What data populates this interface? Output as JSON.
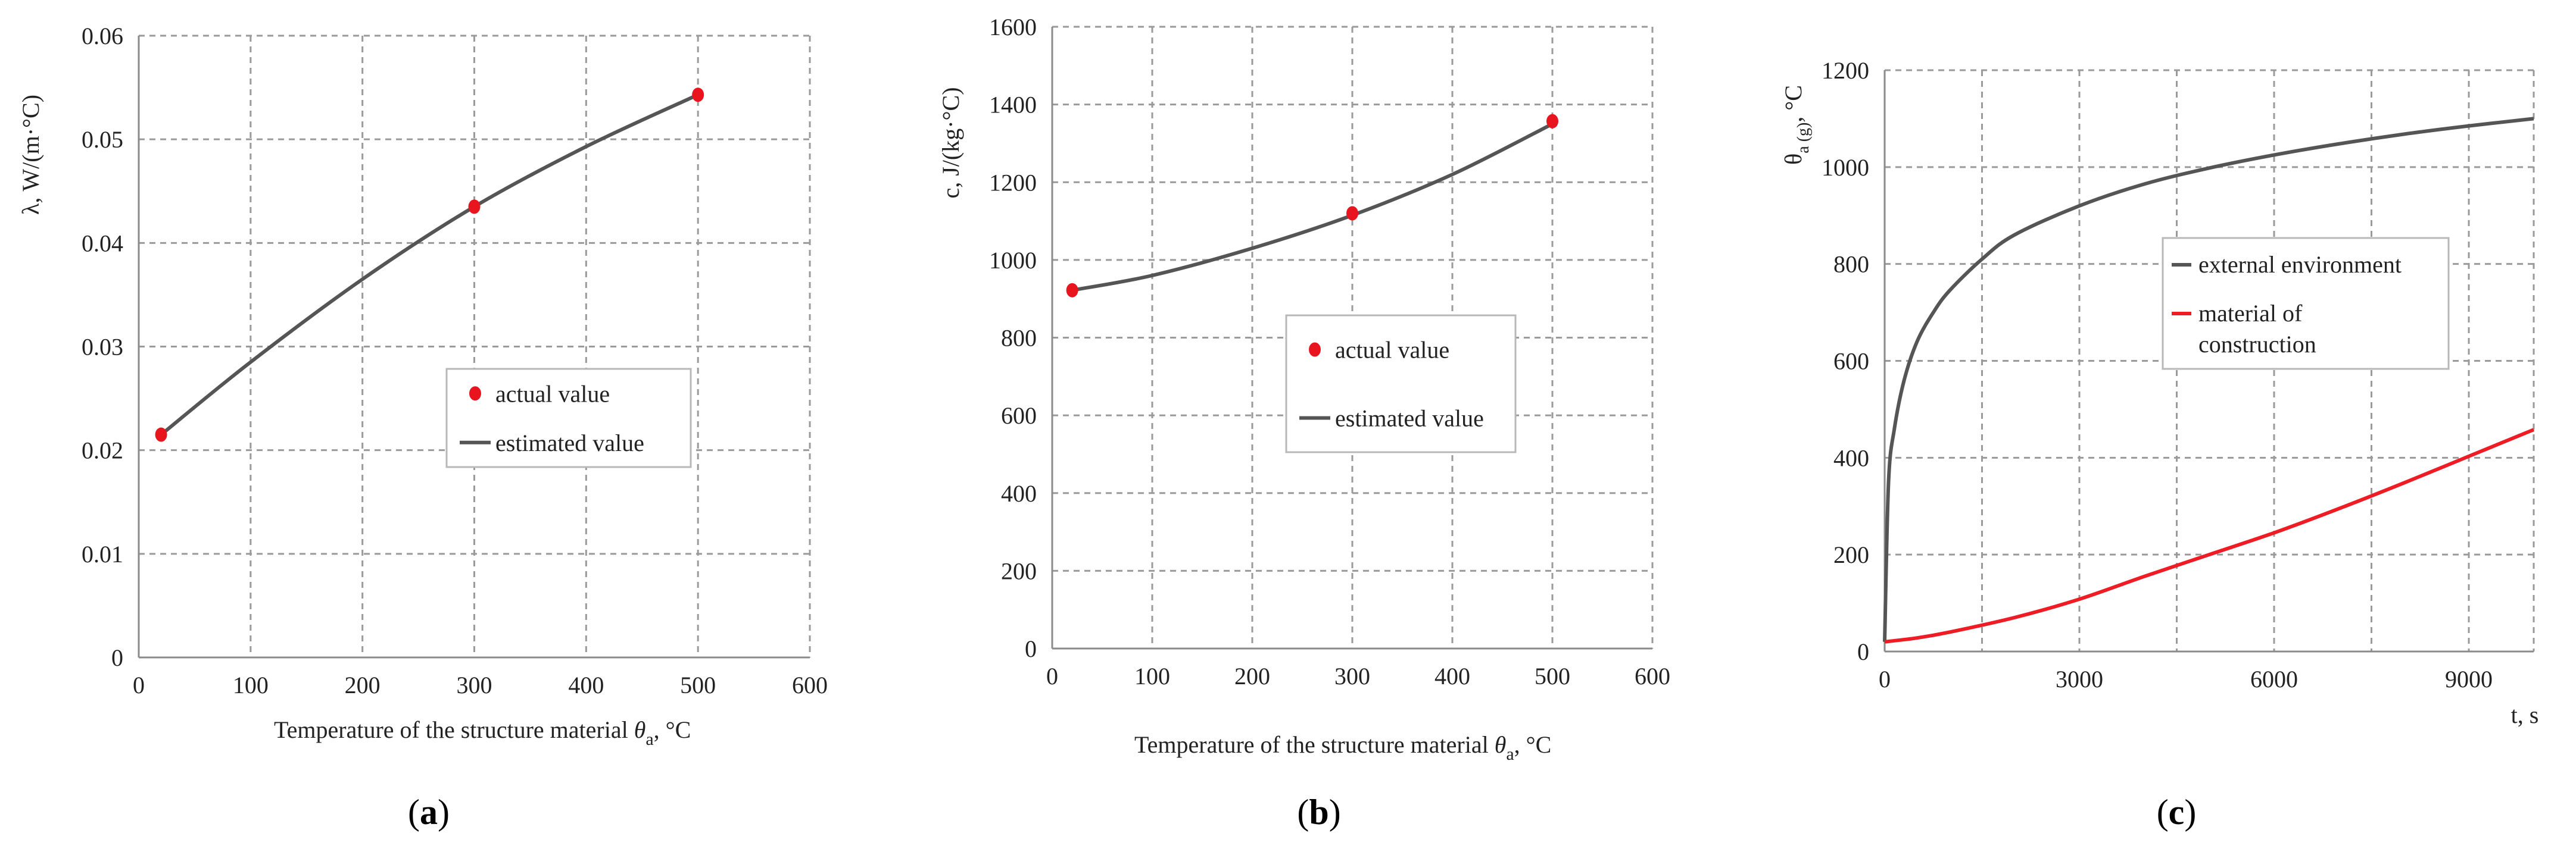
{
  "chart_data": [
    {
      "id": "a",
      "type": "line",
      "caption_letter": "a",
      "xlabel": "Temperature of the structure material",
      "xlabel_symbol": "θ",
      "xlabel_sub": "a",
      "xlabel_unit": ", °C",
      "ylabel": "λ, W/(m·°C)",
      "xlim": [
        0,
        600
      ],
      "ylim": [
        0,
        0.06
      ],
      "x_ticks": [
        0,
        100,
        200,
        300,
        400,
        500,
        600
      ],
      "y_ticks": [
        0,
        0.01,
        0.02,
        0.03,
        0.04,
        0.05,
        0.06
      ],
      "y_tick_labels": [
        "0",
        "0.01",
        "0.02",
        "0.03",
        "0.04",
        "0.05",
        "0.06"
      ],
      "series": [
        {
          "name": "actual value",
          "kind": "points",
          "color": "#e8141e",
          "x": [
            20,
            300,
            500
          ],
          "y": [
            0.0215,
            0.0435,
            0.0543
          ]
        },
        {
          "name": "estimated value",
          "kind": "line",
          "color": "#555555",
          "x": [
            20,
            100,
            200,
            300,
            400,
            500
          ],
          "y": [
            0.0215,
            0.0285,
            0.0365,
            0.0435,
            0.0493,
            0.0543
          ]
        }
      ],
      "legend": [
        {
          "label": "actual value",
          "kind": "points"
        },
        {
          "label": "estimated value",
          "kind": "line"
        }
      ]
    },
    {
      "id": "b",
      "type": "line",
      "caption_letter": "b",
      "xlabel": "Temperature of the structure material",
      "xlabel_symbol": "θ",
      "xlabel_sub": "a",
      "xlabel_unit": ", °C",
      "ylabel": "c, J/(kg·°C)",
      "xlim": [
        0,
        600
      ],
      "ylim": [
        0,
        1600
      ],
      "x_ticks": [
        0,
        100,
        200,
        300,
        400,
        500,
        600
      ],
      "y_ticks": [
        0,
        200,
        400,
        600,
        800,
        1000,
        1200,
        1400,
        1600
      ],
      "y_tick_labels": [
        "0",
        "200",
        "400",
        "600",
        "800",
        "1000",
        "1200",
        "1400",
        "1600"
      ],
      "series": [
        {
          "name": "actual value",
          "kind": "points",
          "color": "#e8141e",
          "x": [
            20,
            300,
            500
          ],
          "y": [
            922,
            1120,
            1357
          ]
        },
        {
          "name": "estimated value",
          "kind": "line",
          "color": "#555555",
          "x": [
            20,
            100,
            200,
            300,
            400,
            500
          ],
          "y": [
            922,
            960,
            1030,
            1115,
            1220,
            1350
          ]
        }
      ],
      "legend": [
        {
          "label": "actual value",
          "kind": "points"
        },
        {
          "label": "estimated value",
          "kind": "line"
        }
      ]
    },
    {
      "id": "c",
      "type": "line",
      "caption_letter": "c",
      "xlabel": "t, s",
      "ylabel_symbol": "θ",
      "ylabel_sub": "a (g)",
      "ylabel_unit": ",  °C",
      "xlim": [
        0,
        10000
      ],
      "ylim": [
        0,
        1200
      ],
      "x_ticks": [
        0,
        3000,
        6000,
        9000
      ],
      "x_grid": [
        0,
        1500,
        3000,
        4500,
        6000,
        7500,
        9000
      ],
      "y_ticks": [
        0,
        200,
        400,
        600,
        800,
        1000,
        1200
      ],
      "y_tick_labels": [
        "0",
        "200",
        "400",
        "600",
        "800",
        "1000",
        "1200"
      ],
      "series": [
        {
          "name": "external environment",
          "kind": "line",
          "color": "#555555",
          "x": [
            0,
            60,
            150,
            300,
            500,
            750,
            1000,
            1500,
            2000,
            3000,
            4000,
            5000,
            6000,
            7000,
            8000,
            9000,
            10000
          ],
          "y": [
            20,
            350,
            460,
            560,
            640,
            700,
            745,
            810,
            860,
            920,
            965,
            998,
            1025,
            1048,
            1068,
            1085,
            1100
          ]
        },
        {
          "name": "material of construction",
          "kind": "line",
          "color": "#ee1c24",
          "x": [
            0,
            500,
            1000,
            2000,
            3000,
            4000,
            5000,
            6000,
            7000,
            8000,
            9000,
            10000
          ],
          "y": [
            20,
            28,
            40,
            70,
            108,
            155,
            200,
            245,
            295,
            348,
            403,
            458
          ]
        }
      ],
      "legend": [
        {
          "label": "external environment",
          "kind": "line",
          "color": "#555555"
        },
        {
          "label": "material of",
          "label2": "construction",
          "kind": "line",
          "color": "#ee1c24"
        }
      ]
    }
  ]
}
